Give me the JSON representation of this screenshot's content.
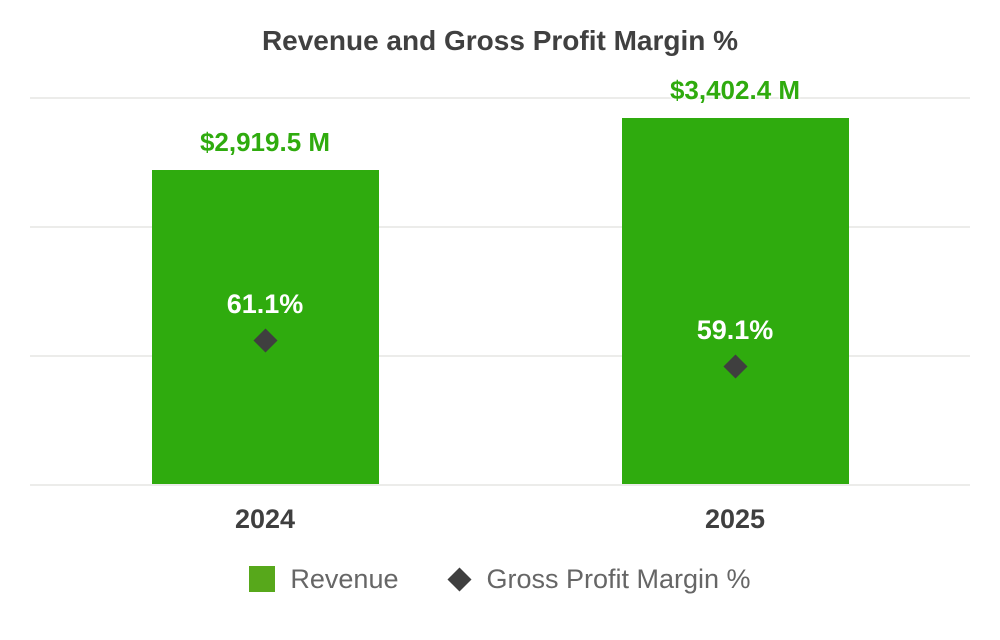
{
  "chart_data": {
    "type": "bar",
    "title": "Revenue and Gross Profit Margin %",
    "categories": [
      "2024",
      "2025"
    ],
    "series": [
      {
        "name": "Revenue",
        "type": "bar",
        "values": [
          2919.5,
          3402.4
        ],
        "labels": [
          "$2,919.5 M",
          "$3,402.4 M"
        ],
        "unit": "$M",
        "color": "#2FAB0E"
      },
      {
        "name": "Gross Profit Margin %",
        "type": "point",
        "marker": "diamond",
        "values": [
          61.1,
          59.1
        ],
        "labels": [
          "61.1%",
          "59.1%"
        ],
        "unit": "%",
        "color": "#3F3F3F"
      }
    ],
    "xlabel": "",
    "ylabel": "",
    "ylim": [
      0,
      3600
    ],
    "y_grid_step": 1200,
    "y2lim": [
      50,
      80
    ],
    "grid": true,
    "legend_position": "bottom"
  },
  "legend": {
    "items": [
      {
        "label": "Revenue",
        "marker": "square",
        "color": "#57A81B"
      },
      {
        "label": "Gross Profit Margin %",
        "marker": "diamond",
        "color": "#3F3F3F"
      }
    ]
  },
  "colors": {
    "background": "#FFFFFF",
    "revenue_green": "#2FAB0E",
    "legend_green": "#57A81B",
    "marker_dark": "#3F3F3F",
    "title_text": "#404040",
    "axis_label_text": "#3F3F3F",
    "legend_text": "#666666",
    "percent_label": "#FFFFFF",
    "gridline": "#ECECEA"
  }
}
